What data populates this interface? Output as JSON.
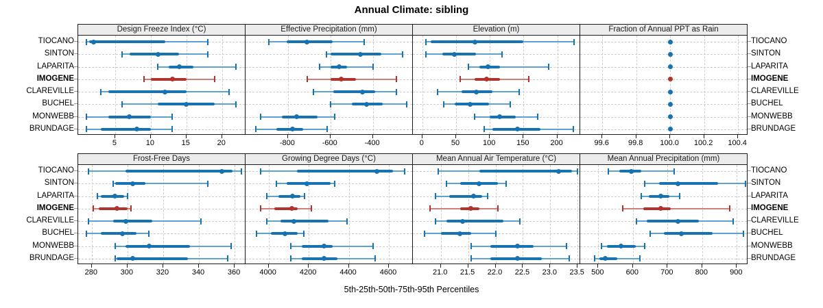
{
  "title": "Annual Climate: sibling",
  "caption": "5th-25th-50th-75th-95th Percentiles",
  "stations": [
    "TIOCANO",
    "SINTON",
    "LAPARITA",
    "IMOGENE",
    "CLAREVILLE",
    "BUCHEL",
    "MONWEBB",
    "BRUNDAGE"
  ],
  "highlight_station": "IMOGENE",
  "percentile_levels": [
    5,
    25,
    50,
    75,
    95
  ],
  "colors": {
    "normal": "#1672b1",
    "normal_light": "#5ea2cf",
    "highlight": "#b0332c",
    "highlight_light": "#cf7f79",
    "strip_bg": "#ececec",
    "grid": "#cdcdcd",
    "border": "#1a1a1a"
  },
  "chart_data": [
    {
      "type": "dot-interval",
      "title": "Design Freeze Index (°C)",
      "xlim": [
        -0.2,
        23.4
      ],
      "ticks": [
        5,
        10,
        15,
        20
      ],
      "tick_labels": [
        "5",
        "10",
        "15",
        "20"
      ],
      "legend_note": "values per station are 5th,25th,50th,75th,95th percentiles",
      "values": [
        [
          1,
          1.3,
          2,
          12,
          18
        ],
        [
          6,
          7,
          11,
          14,
          18
        ],
        [
          11,
          12.5,
          14,
          16,
          22
        ],
        [
          9,
          10,
          13,
          15,
          19
        ],
        [
          3,
          4,
          12,
          15,
          21
        ],
        [
          6,
          11,
          15,
          19,
          22
        ],
        [
          1,
          4,
          7,
          10,
          13
        ],
        [
          1,
          3,
          8,
          10,
          13
        ]
      ]
    },
    {
      "type": "dot-interval",
      "title": "Effective Precipitation (mm)",
      "xlim": [
        -1000,
        -208
      ],
      "ticks": [
        -800,
        -600,
        -400
      ],
      "tick_labels": [
        "-800",
        "-600",
        "-400"
      ],
      "values": [
        [
          -890,
          -805,
          -710,
          -590,
          -440
        ],
        [
          -620,
          -600,
          -460,
          -360,
          -260
        ],
        [
          -650,
          -600,
          -560,
          -520,
          -400
        ],
        [
          -710,
          -600,
          -550,
          -480,
          -290
        ],
        [
          -680,
          -585,
          -450,
          -390,
          -290
        ],
        [
          -600,
          -500,
          -430,
          -355,
          -240
        ],
        [
          -930,
          -830,
          -760,
          -660,
          -580
        ],
        [
          -950,
          -855,
          -780,
          -730,
          -615
        ]
      ]
    },
    {
      "type": "dot-interval",
      "title": "Elevation (m)",
      "xlim": [
        -14,
        235
      ],
      "ticks": [
        0,
        50,
        100,
        150,
        200
      ],
      "tick_labels": [
        "0",
        "50",
        "100",
        "150",
        "200"
      ],
      "values": [
        [
          5,
          12,
          78,
          150,
          225
        ],
        [
          5,
          30,
          47,
          80,
          118
        ],
        [
          68,
          85,
          97,
          115,
          187
        ],
        [
          56,
          77,
          95,
          115,
          158
        ],
        [
          23,
          58,
          80,
          104,
          144
        ],
        [
          32,
          48,
          71,
          99,
          130
        ],
        [
          77,
          100,
          115,
          138,
          171
        ],
        [
          92,
          104,
          141,
          175,
          224
        ]
      ]
    },
    {
      "type": "dot-interval",
      "title": "Fraction of Annual PPT as Rain",
      "xlim": [
        99.47,
        100.46
      ],
      "ticks": [
        99.6,
        99.8,
        100.0,
        100.2,
        100.4
      ],
      "tick_labels": [
        "99.6",
        "99.8",
        "100.0",
        "100.2",
        "100.4"
      ],
      "values": [
        [
          100,
          100,
          100,
          100,
          100
        ],
        [
          100,
          100,
          100,
          100,
          100
        ],
        [
          100,
          100,
          100,
          100,
          100
        ],
        [
          100,
          100,
          100,
          100,
          100
        ],
        [
          100,
          100,
          100,
          100,
          100
        ],
        [
          100,
          100,
          100,
          100,
          100
        ],
        [
          100,
          100,
          100,
          100,
          100
        ],
        [
          100,
          100,
          100,
          100,
          100
        ]
      ]
    },
    {
      "type": "dot-interval",
      "title": "Frost-Free Days",
      "xlim": [
        272.4,
        366.5
      ],
      "ticks": [
        280,
        300,
        320,
        340,
        360
      ],
      "tick_labels": [
        "280",
        "300",
        "320",
        "340",
        "360"
      ],
      "values": [
        [
          278,
          299,
          353,
          359,
          364
        ],
        [
          292,
          293,
          303,
          310,
          345
        ],
        [
          283,
          285,
          293,
          298,
          300
        ],
        [
          281,
          284,
          294,
          300,
          302
        ],
        [
          278,
          292,
          299,
          314,
          341
        ],
        [
          277,
          285,
          297,
          305,
          312
        ],
        [
          293,
          299,
          312,
          335,
          358
        ],
        [
          293,
          294,
          303,
          334,
          356
        ]
      ]
    },
    {
      "type": "dot-interval",
      "title": "Growing Degree Days (°C)",
      "xlim": [
        3885,
        4723
      ],
      "ticks": [
        4000,
        4200,
        4400,
        4600
      ],
      "tick_labels": [
        "4000",
        "4200",
        "4400",
        "4600"
      ],
      "values": [
        [
          3960,
          4140,
          4540,
          4620,
          4680
        ],
        [
          4040,
          4090,
          4190,
          4310,
          4330
        ],
        [
          3990,
          4050,
          4120,
          4160,
          4180
        ],
        [
          3960,
          4030,
          4115,
          4145,
          4215
        ],
        [
          3990,
          4060,
          4125,
          4300,
          4390
        ],
        [
          3940,
          4010,
          4080,
          4145,
          4175
        ],
        [
          4110,
          4165,
          4275,
          4320,
          4520
        ],
        [
          4110,
          4165,
          4275,
          4345,
          4530
        ]
      ]
    },
    {
      "type": "dot-interval",
      "title": "Mean Annual Air Temperature (°C)",
      "xlim": [
        20.49,
        23.56
      ],
      "ticks": [
        21.0,
        21.5,
        22.0,
        22.5,
        23.0,
        23.5
      ],
      "tick_labels": [
        "21.0",
        "21.5",
        "22.0",
        "22.5",
        "23.0",
        "23.5"
      ],
      "values": [
        [
          20.95,
          21.7,
          23.15,
          23.4,
          23.5
        ],
        [
          21.1,
          21.35,
          21.7,
          22.05,
          22.2
        ],
        [
          20.9,
          21.15,
          21.6,
          21.75,
          21.85
        ],
        [
          20.8,
          21.35,
          21.55,
          21.7,
          22.05
        ],
        [
          20.9,
          21.1,
          21.4,
          22.15,
          22.45
        ],
        [
          20.7,
          21.0,
          21.35,
          21.55,
          22.0
        ],
        [
          21.55,
          21.9,
          22.4,
          22.7,
          23.3
        ],
        [
          21.55,
          21.9,
          22.4,
          22.85,
          23.35
        ]
      ]
    },
    {
      "type": "dot-interval",
      "title": "Mean Annual Precipitation (mm)",
      "xlim": [
        448,
        933
      ],
      "ticks": [
        500,
        600,
        700,
        800,
        900
      ],
      "tick_labels": [
        "500",
        "600",
        "700",
        "800",
        "900"
      ],
      "values": [
        [
          530,
          560,
          595,
          625,
          720
        ],
        [
          635,
          675,
          730,
          845,
          925
        ],
        [
          625,
          645,
          680,
          705,
          735
        ],
        [
          570,
          630,
          680,
          710,
          880
        ],
        [
          610,
          640,
          730,
          790,
          890
        ],
        [
          650,
          690,
          740,
          830,
          920
        ],
        [
          510,
          525,
          565,
          608,
          635
        ],
        [
          490,
          503,
          520,
          555,
          620
        ]
      ]
    }
  ]
}
